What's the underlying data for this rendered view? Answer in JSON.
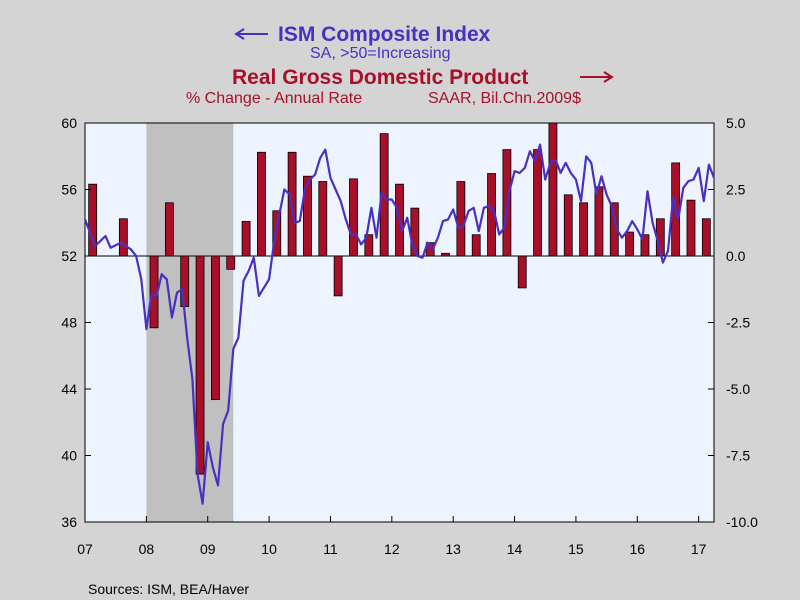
{
  "colors": {
    "ism": "#4a2fc0",
    "gdp": "#a8102a",
    "plot_bg": "#ffffff",
    "recession": "#c0c0c0",
    "page_bg": "#d4d4d4"
  },
  "titles": {
    "ism_title": "ISM Composite Index",
    "ism_subtitle": "SA, >50=Increasing",
    "gdp_title": "Real Gross Domestic Product",
    "gdp_subtitle_left": "% Change - Annual Rate",
    "gdp_subtitle_right": "SAAR, Bil.Chn.2009$"
  },
  "source": "Sources:  ISM, BEA/Haver",
  "chart_data": {
    "type": "bar",
    "x_tick_labels": [
      "07",
      "08",
      "09",
      "10",
      "11",
      "12",
      "13",
      "14",
      "15",
      "16",
      "17"
    ],
    "x_range": [
      "2007-01",
      "2017-04"
    ],
    "left_axis": {
      "ticks": [
        "60",
        "56",
        "52",
        "48",
        "44",
        "40",
        "36"
      ],
      "tick_values": [
        60,
        56,
        52,
        48,
        44,
        40,
        36
      ],
      "ylim": [
        36,
        60
      ]
    },
    "right_axis": {
      "ticks": [
        "5.0",
        "2.5",
        "0.0",
        "-2.5",
        "-5.0",
        "-7.5",
        "-10.0"
      ],
      "tick_values": [
        5,
        2.5,
        0,
        -2.5,
        -5,
        -7.5,
        -10
      ],
      "ylim": [
        -10,
        5
      ]
    },
    "recession": [
      "2008-01",
      "2009-06"
    ],
    "series": [
      {
        "name": "Real Gross Domestic Product",
        "type": "bar",
        "axis": "right",
        "x": [
          "2007Q1",
          "2007Q2",
          "2007Q3",
          "2007Q4",
          "2008Q1",
          "2008Q2",
          "2008Q3",
          "2008Q4",
          "2009Q1",
          "2009Q2",
          "2009Q3",
          "2009Q4",
          "2010Q1",
          "2010Q2",
          "2010Q3",
          "2010Q4",
          "2011Q1",
          "2011Q2",
          "2011Q3",
          "2011Q4",
          "2012Q1",
          "2012Q2",
          "2012Q3",
          "2012Q4",
          "2013Q1",
          "2013Q2",
          "2013Q3",
          "2013Q4",
          "2014Q1",
          "2014Q2",
          "2014Q3",
          "2014Q4",
          "2015Q1",
          "2015Q2",
          "2015Q3",
          "2015Q4",
          "2016Q1",
          "2016Q2",
          "2016Q3",
          "2016Q4",
          "2017Q1"
        ],
        "values": [
          2.7,
          0,
          1.4,
          0,
          -2.7,
          2.0,
          -1.9,
          -8.2,
          -5.4,
          -0.5,
          1.3,
          3.9,
          1.7,
          3.9,
          3.0,
          2.8,
          -1.5,
          2.9,
          0.8,
          4.6,
          2.7,
          1.8,
          0.5,
          0.1,
          2.8,
          0.8,
          3.1,
          4.0,
          -1.2,
          4.0,
          5.0,
          2.3,
          2.0,
          2.6,
          2.0,
          0.9,
          0.8,
          1.4,
          3.5,
          2.1,
          1.4
        ]
      },
      {
        "name": "ISM Composite Index",
        "type": "line",
        "axis": "left",
        "x": [
          "2007-01",
          "2007-03",
          "2007-05",
          "2007-06",
          "2007-08",
          "2007-10",
          "2007-11",
          "2007-12",
          "2008-01",
          "2008-02",
          "2008-03",
          "2008-04",
          "2008-05",
          "2008-06",
          "2008-07",
          "2008-08",
          "2008-09",
          "2008-10",
          "2008-11",
          "2008-12",
          "2009-01",
          "2009-02",
          "2009-03",
          "2009-04",
          "2009-05",
          "2009-06",
          "2009-07",
          "2009-08",
          "2009-09",
          "2009-10",
          "2009-11",
          "2009-12",
          "2010-01",
          "2010-02",
          "2010-03",
          "2010-04",
          "2010-05",
          "2010-06",
          "2010-07",
          "2010-08",
          "2010-09",
          "2010-10",
          "2010-11",
          "2010-12",
          "2011-01",
          "2011-02",
          "2011-03",
          "2011-04",
          "2011-05",
          "2011-06",
          "2011-07",
          "2011-08",
          "2011-09",
          "2011-10",
          "2011-11",
          "2011-12",
          "2012-01",
          "2012-02",
          "2012-03",
          "2012-04",
          "2012-05",
          "2012-06",
          "2012-07",
          "2012-08",
          "2012-09",
          "2012-10",
          "2012-11",
          "2012-12",
          "2013-01",
          "2013-02",
          "2013-03",
          "2013-04",
          "2013-05",
          "2013-06",
          "2013-07",
          "2013-08",
          "2013-09",
          "2013-10",
          "2013-11",
          "2013-12",
          "2014-01",
          "2014-02",
          "2014-03",
          "2014-04",
          "2014-05",
          "2014-06",
          "2014-07",
          "2014-08",
          "2014-09",
          "2014-10",
          "2014-11",
          "2014-12",
          "2015-01",
          "2015-02",
          "2015-03",
          "2015-04",
          "2015-05",
          "2015-06",
          "2015-07",
          "2015-08",
          "2015-09",
          "2015-10",
          "2015-11",
          "2015-12",
          "2016-01",
          "2016-02",
          "2016-03",
          "2016-04",
          "2016-05",
          "2016-06",
          "2016-07",
          "2016-08",
          "2016-09",
          "2016-10",
          "2016-11",
          "2016-12",
          "2017-01",
          "2017-02",
          "2017-03",
          "2017-04"
        ],
        "values": [
          54.2,
          52.6,
          53.2,
          52.5,
          52.8,
          52.4,
          52.0,
          50.6,
          47.6,
          49.7,
          49.6,
          50.9,
          50.6,
          48.3,
          49.8,
          50.0,
          47.0,
          44.6,
          38.9,
          37.1,
          40.8,
          39.3,
          38.2,
          41.9,
          42.7,
          46.4,
          47.1,
          50.5,
          51.1,
          51.9,
          49.6,
          50.1,
          50.6,
          52.9,
          54.5,
          56.0,
          55.7,
          54.0,
          54.1,
          56.0,
          56.6,
          56.9,
          57.9,
          58.4,
          56.7,
          56.0,
          55.3,
          54.2,
          53.3,
          53.3,
          52.7,
          53.1,
          54.9,
          53.1,
          55.8,
          55.4,
          55.4,
          54.9,
          53.5,
          54.3,
          52.7,
          52.0,
          51.9,
          52.8,
          52.4,
          53.1,
          54.1,
          54.2,
          54.8,
          53.7,
          53.8,
          54.7,
          54.9,
          53.5,
          54.9,
          55.0,
          54.7,
          53.3,
          53.7,
          55.9,
          57.1,
          57.0,
          57.3,
          58.3,
          57.7,
          58.7,
          56.6,
          57.6,
          57.8,
          57.0,
          57.6,
          57.0,
          56.6,
          55.3,
          58.0,
          57.6,
          55.7,
          56.8,
          55.7,
          55.0,
          53.6,
          53.1,
          53.5,
          54.1,
          53.6,
          53.0,
          55.9,
          54.0,
          52.9,
          51.6,
          52.3,
          55.5,
          54.2,
          56.1,
          56.5,
          56.6,
          57.3,
          55.3,
          57.5,
          56.7
        ]
      }
    ]
  }
}
